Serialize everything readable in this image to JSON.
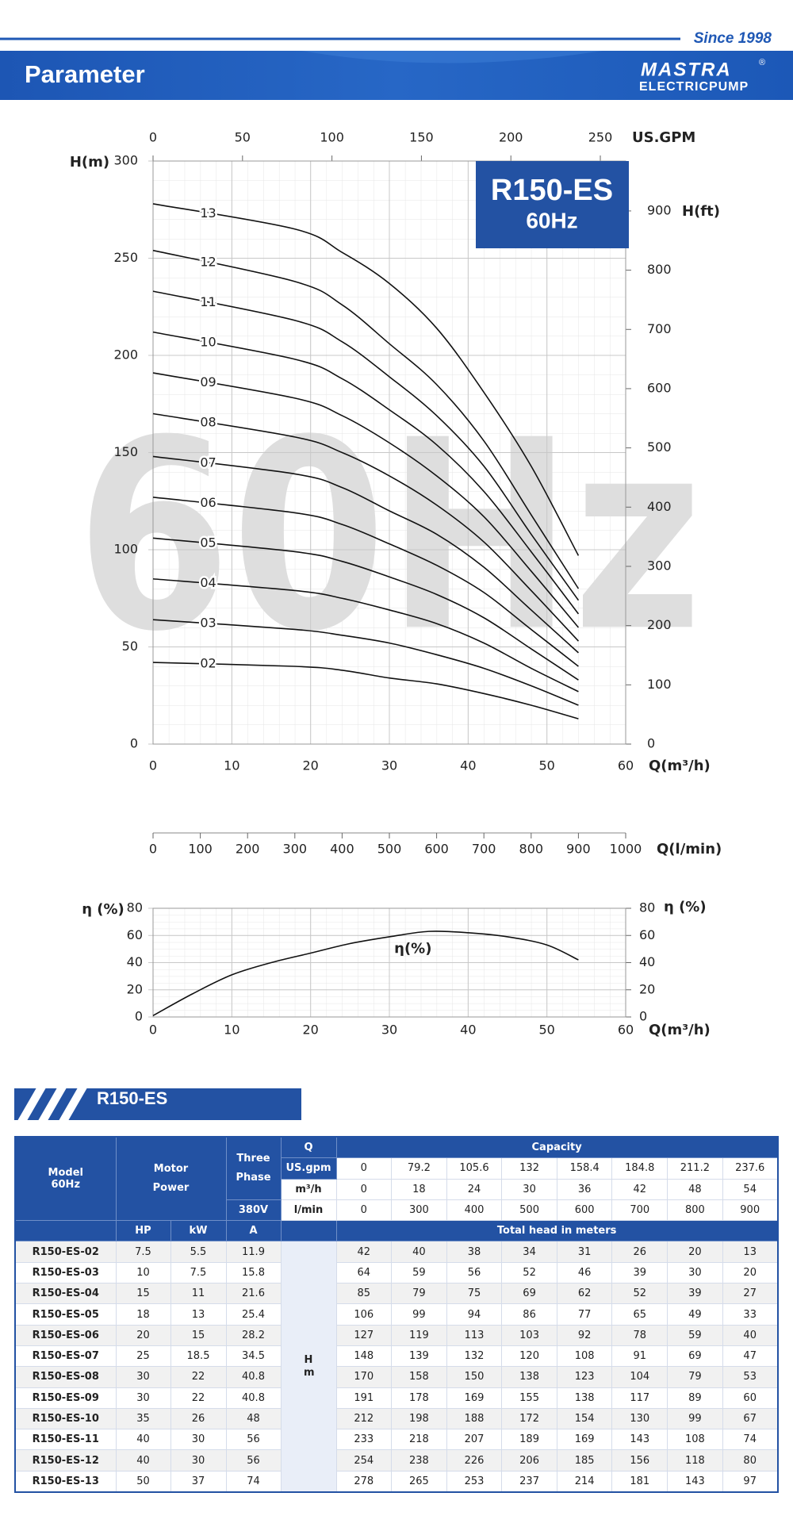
{
  "header": {
    "since": "Since 1998",
    "title": "Parameter",
    "logo": "MASTRA",
    "logo_sub": "ELECTRICPUMP",
    "registered": "®"
  },
  "chart_data": [
    {
      "type": "line",
      "title": "R150-ES",
      "subtitle": "60Hz",
      "watermark": "60Hz",
      "x_label": "Q(m³/h)",
      "y_label": "H(m)",
      "y2_label": "H(ft)",
      "x2_label": "US.GPM",
      "x3_label": "Q(l/min)",
      "xlim": [
        0,
        60
      ],
      "xticks": [
        0,
        10,
        20,
        30,
        40,
        50,
        60
      ],
      "ylim": [
        0,
        300
      ],
      "yticks": [
        0,
        50,
        100,
        150,
        200,
        250,
        300
      ],
      "y2lim": [
        0,
        984.25
      ],
      "y2ticks": [
        0,
        100,
        200,
        300,
        400,
        500,
        600,
        700,
        800,
        900
      ],
      "x2lim": [
        0,
        264.17
      ],
      "x2ticks": [
        0,
        50,
        100,
        150,
        200,
        250
      ],
      "x3lim": [
        0,
        1000
      ],
      "x3ticks": [
        0,
        100,
        200,
        300,
        400,
        500,
        600,
        700,
        800,
        900,
        1000
      ],
      "grid": true,
      "x": [
        0,
        18,
        24,
        30,
        36,
        42,
        48,
        54
      ],
      "series": [
        {
          "name": "02",
          "color": "#111111",
          "values": [
            42,
            40,
            38,
            34,
            31,
            26,
            20,
            13
          ]
        },
        {
          "name": "03",
          "color": "#111111",
          "values": [
            64,
            59,
            56,
            52,
            46,
            39,
            30,
            20
          ]
        },
        {
          "name": "04",
          "color": "#111111",
          "values": [
            85,
            79,
            75,
            69,
            62,
            52,
            39,
            27
          ]
        },
        {
          "name": "05",
          "color": "#111111",
          "values": [
            106,
            99,
            94,
            86,
            77,
            65,
            49,
            33
          ]
        },
        {
          "name": "06",
          "color": "#111111",
          "values": [
            127,
            119,
            113,
            103,
            92,
            78,
            59,
            40
          ]
        },
        {
          "name": "07",
          "color": "#111111",
          "values": [
            148,
            139,
            132,
            120,
            108,
            91,
            69,
            47
          ]
        },
        {
          "name": "08",
          "color": "#111111",
          "values": [
            170,
            158,
            150,
            138,
            123,
            104,
            79,
            53
          ]
        },
        {
          "name": "09",
          "color": "#111111",
          "values": [
            191,
            178,
            169,
            155,
            138,
            117,
            89,
            60
          ]
        },
        {
          "name": "10",
          "color": "#111111",
          "values": [
            212,
            198,
            188,
            172,
            154,
            130,
            99,
            67
          ]
        },
        {
          "name": "11",
          "color": "#111111",
          "values": [
            233,
            218,
            207,
            189,
            169,
            143,
            108,
            74
          ]
        },
        {
          "name": "12",
          "color": "#111111",
          "values": [
            254,
            238,
            226,
            206,
            185,
            156,
            118,
            80
          ]
        },
        {
          "name": "13",
          "color": "#111111",
          "values": [
            278,
            265,
            253,
            237,
            214,
            181,
            143,
            97
          ]
        }
      ]
    },
    {
      "type": "line",
      "x_label": "Q(m³/h)",
      "y_label": "η (%)",
      "y2_label": "η (%)",
      "xlim": [
        0,
        60
      ],
      "xticks": [
        0,
        10,
        20,
        30,
        40,
        50,
        60
      ],
      "ylim": [
        0,
        80
      ],
      "yticks": [
        0,
        20,
        40,
        60,
        80
      ],
      "y2lim": [
        0,
        80
      ],
      "y2ticks": [
        0,
        20,
        40,
        60,
        80
      ],
      "grid": true,
      "x": [
        0,
        5,
        10,
        15,
        20,
        25,
        30,
        35,
        40,
        45,
        50,
        54
      ],
      "series": [
        {
          "name": "η(%)",
          "color": "#111111",
          "values": [
            1,
            17,
            31,
            40,
            47,
            54,
            59,
            63,
            62,
            59,
            53,
            42
          ]
        }
      ]
    }
  ],
  "table": {
    "title": "R150-ES",
    "header": {
      "model": "Model",
      "frequency": "60Hz",
      "motor_power": "Motor Power",
      "three_phase": "Three Phase",
      "voltage": "380V",
      "q": "Q",
      "capacity": "Capacity",
      "units": [
        "US.gpm",
        "m³/h",
        "l/min"
      ],
      "flow": [
        [
          0,
          79.2,
          105.6,
          132,
          158.4,
          184.8,
          211.2,
          237.6
        ],
        [
          0,
          18,
          24,
          30,
          36,
          42,
          48,
          54
        ],
        [
          0,
          300,
          400,
          500,
          600,
          700,
          800,
          900
        ]
      ],
      "hp": "HP",
      "kw": "kW",
      "amp": "A",
      "total_head": "Total head in meters",
      "h_unit": "H m"
    },
    "rows": [
      [
        "R150-ES-02",
        7.5,
        5.5,
        11.9,
        42,
        40,
        38,
        34,
        31,
        26,
        20,
        13
      ],
      [
        "R150-ES-03",
        10,
        7.5,
        15.8,
        64,
        59,
        56,
        52,
        46,
        39,
        30,
        20
      ],
      [
        "R150-ES-04",
        15,
        11,
        21.6,
        85,
        79,
        75,
        69,
        62,
        52,
        39,
        27
      ],
      [
        "R150-ES-05",
        18,
        13,
        25.4,
        106,
        99,
        94,
        86,
        77,
        65,
        49,
        33
      ],
      [
        "R150-ES-06",
        20,
        15,
        28.2,
        127,
        119,
        113,
        103,
        92,
        78,
        59,
        40
      ],
      [
        "R150-ES-07",
        25,
        18.5,
        34.5,
        148,
        139,
        132,
        120,
        108,
        91,
        69,
        47
      ],
      [
        "R150-ES-08",
        30,
        22,
        40.8,
        170,
        158,
        150,
        138,
        123,
        104,
        79,
        53
      ],
      [
        "R150-ES-09",
        30,
        22,
        40.8,
        191,
        178,
        169,
        155,
        138,
        117,
        89,
        60
      ],
      [
        "R150-ES-10",
        35,
        26,
        48,
        212,
        198,
        188,
        172,
        154,
        130,
        99,
        67
      ],
      [
        "R150-ES-11",
        40,
        30,
        56,
        233,
        218,
        207,
        189,
        169,
        143,
        108,
        74
      ],
      [
        "R150-ES-12",
        40,
        30,
        56,
        254,
        238,
        226,
        206,
        185,
        156,
        118,
        80
      ],
      [
        "R150-ES-13",
        50,
        37,
        74,
        278,
        265,
        253,
        237,
        214,
        181,
        143,
        97
      ]
    ]
  }
}
